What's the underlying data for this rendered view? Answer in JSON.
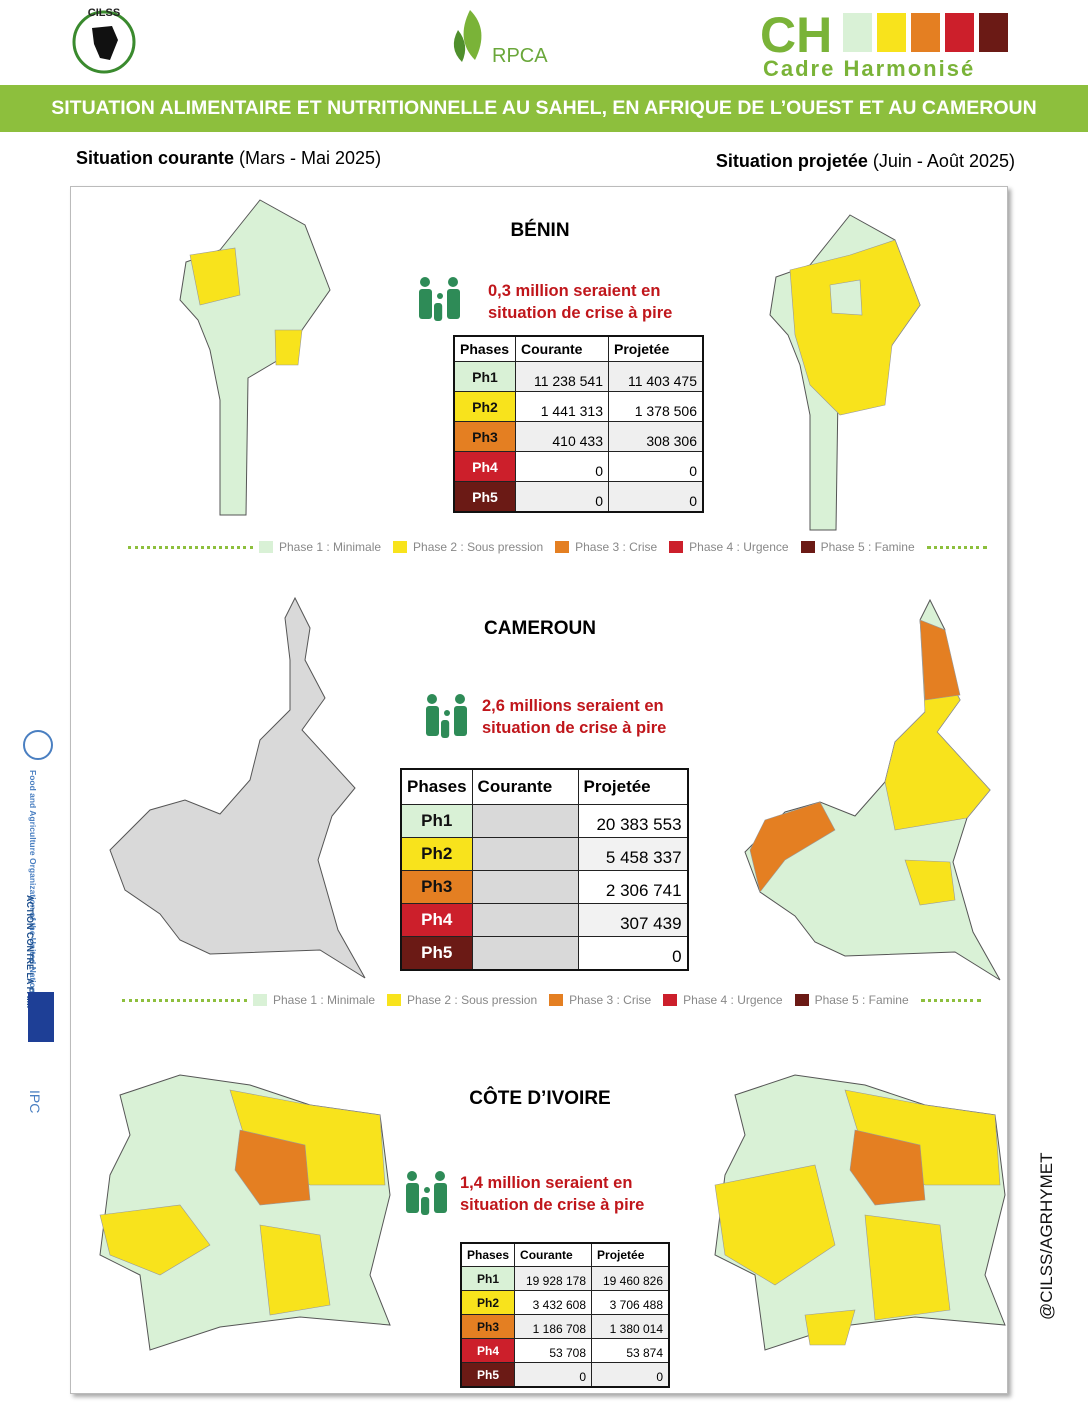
{
  "header": {
    "logos": [
      "CILSS",
      "RPCA"
    ],
    "ch_mark": "CH",
    "ch_name": "Cadre Harmonisé",
    "title": "SITUATION ALIMENTAIRE ET NUTRITIONNELLE AU SAHEL, EN AFRIQUE DE L’OUEST ET AU CAMEROUN"
  },
  "periods": [
    {
      "label": "Situation courante",
      "range": "(Mars - Mai 2025)"
    },
    {
      "label": "Situation projetée",
      "range": "(Juin - Août 2025)"
    }
  ],
  "legend": [
    "Phase 1 : Minimale",
    "Phase 2 : Sous pression",
    "Phase 3 : Crise",
    "Phase 4 : Urgence",
    "Phase 5 : Famine"
  ],
  "phase_colors": [
    "#d9f1d6",
    "#f8e31c",
    "#e47f22",
    "#cc1f2b",
    "#6b1a15"
  ],
  "sections": [
    {
      "country": "BÉNIN",
      "note": [
        "0,3 million seraient en",
        "situation de crise à pire"
      ],
      "table": {
        "header": [
          "Phases",
          "Courante",
          "Projetée"
        ],
        "rows": [
          {
            "phase": "Ph1",
            "courante": "11 238 541",
            "projetee": "11 403 475"
          },
          {
            "phase": "Ph2",
            "courante": "1 441 313",
            "projetee": "1 378 506"
          },
          {
            "phase": "Ph3",
            "courante": "410 433",
            "projetee": "308 306"
          },
          {
            "phase": "Ph4",
            "courante": "0",
            "projetee": "0"
          },
          {
            "phase": "Ph5",
            "courante": "0",
            "projetee": "0"
          }
        ]
      }
    },
    {
      "country": "CAMEROUN",
      "note": [
        "2,6 millions seraient en",
        "situation de crise à pire"
      ],
      "table": {
        "header": [
          "Phases",
          "Courante",
          "Projetée"
        ],
        "rows": [
          {
            "phase": "Ph1",
            "courante": null,
            "projetee": "20 383 553"
          },
          {
            "phase": "Ph2",
            "courante": null,
            "projetee": "5 458 337"
          },
          {
            "phase": "Ph3",
            "courante": null,
            "projetee": "2 306 741"
          },
          {
            "phase": "Ph4",
            "courante": null,
            "projetee": "307 439"
          },
          {
            "phase": "Ph5",
            "courante": null,
            "projetee": "0"
          }
        ]
      }
    },
    {
      "country": "CÔTE D’IVOIRE",
      "note": [
        "1,4 million seraient en",
        "situation de crise à pire"
      ],
      "table": {
        "header": [
          "Phases",
          "Courante",
          "Projetée"
        ],
        "rows": [
          {
            "phase": "Ph1",
            "courante": "19 928 178",
            "projetee": "19 460 826"
          },
          {
            "phase": "Ph2",
            "courante": "3 432 608",
            "projetee": "3 706 488"
          },
          {
            "phase": "Ph3",
            "courante": "1 186 708",
            "projetee": "1 380 014"
          },
          {
            "phase": "Ph4",
            "courante": "53 708",
            "projetee": "53 874"
          },
          {
            "phase": "Ph5",
            "courante": "0",
            "projetee": "0"
          }
        ]
      }
    }
  ],
  "partners": [
    "Food and Agriculture Organization of the United Nations",
    "ACTION CONTRE LA FAIM",
    "IPC"
  ],
  "credit": "@CILSS/AGRHYMET"
}
